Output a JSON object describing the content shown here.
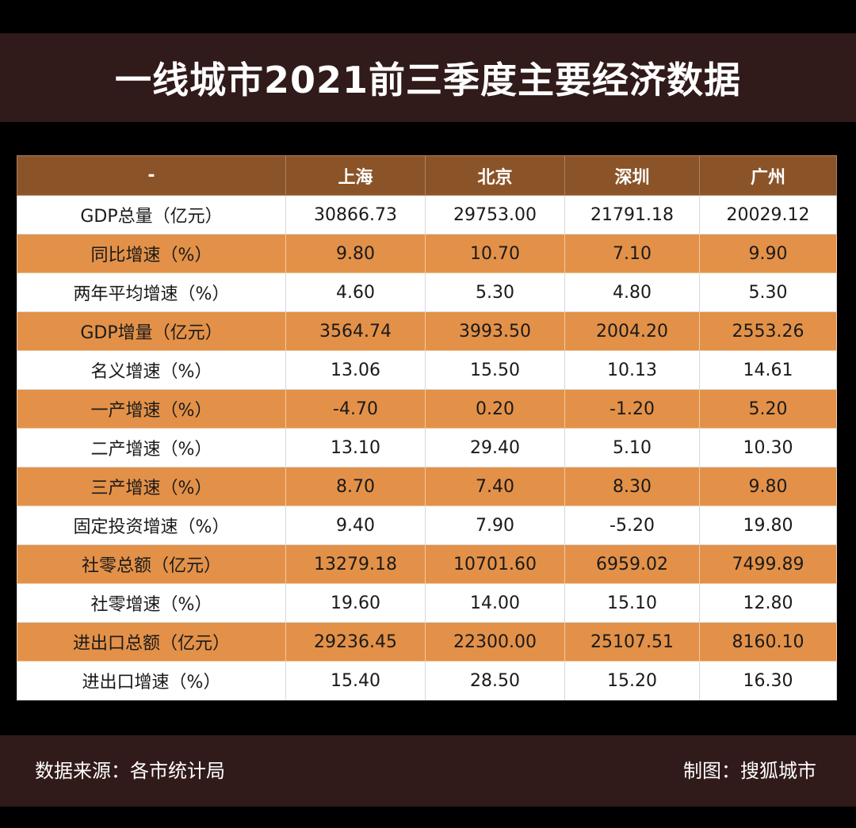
{
  "title": "一线城市2021前三季度主要经济数据",
  "chart_data": {
    "type": "table",
    "title": "一线城市2021前三季度主要经济数据",
    "columns": [
      "-",
      "上海",
      "北京",
      "深圳",
      "广州"
    ],
    "rows": [
      {
        "label": "GDP总量（亿元）",
        "values": [
          "30866.73",
          "29753.00",
          "21791.18",
          "20029.12"
        ]
      },
      {
        "label": "同比增速（%）",
        "values": [
          "9.80",
          "10.70",
          "7.10",
          "9.90"
        ]
      },
      {
        "label": "两年平均增速（%）",
        "values": [
          "4.60",
          "5.30",
          "4.80",
          "5.30"
        ]
      },
      {
        "label": "GDP增量（亿元）",
        "values": [
          "3564.74",
          "3993.50",
          "2004.20",
          "2553.26"
        ]
      },
      {
        "label": "名义增速（%）",
        "values": [
          "13.06",
          "15.50",
          "10.13",
          "14.61"
        ]
      },
      {
        "label": "一产增速（%）",
        "values": [
          "-4.70",
          "0.20",
          "-1.20",
          "5.20"
        ]
      },
      {
        "label": "二产增速（%）",
        "values": [
          "13.10",
          "29.40",
          "5.10",
          "10.30"
        ]
      },
      {
        "label": "三产增速（%）",
        "values": [
          "8.70",
          "7.40",
          "8.30",
          "9.80"
        ]
      },
      {
        "label": "固定投资增速（%）",
        "values": [
          "9.40",
          "7.90",
          "-5.20",
          "19.80"
        ]
      },
      {
        "label": "社零总额（亿元）",
        "values": [
          "13279.18",
          "10701.60",
          "6959.02",
          "7499.89"
        ]
      },
      {
        "label": "社零增速（%）",
        "values": [
          "19.60",
          "14.00",
          "15.10",
          "12.80"
        ]
      },
      {
        "label": "进出口总额（亿元）",
        "values": [
          "29236.45",
          "22300.00",
          "25107.51",
          "8160.10"
        ]
      },
      {
        "label": "进出口增速（%）",
        "values": [
          "15.40",
          "28.50",
          "15.20",
          "16.30"
        ]
      }
    ]
  },
  "footer": {
    "source": "数据来源：各市统计局",
    "credit": "制图：搜狐城市"
  },
  "colors": {
    "background": "#000000",
    "banner": "#311a1a",
    "header": "#8b5428",
    "row_alt": "#e39148",
    "row_plain": "#ffffff"
  }
}
